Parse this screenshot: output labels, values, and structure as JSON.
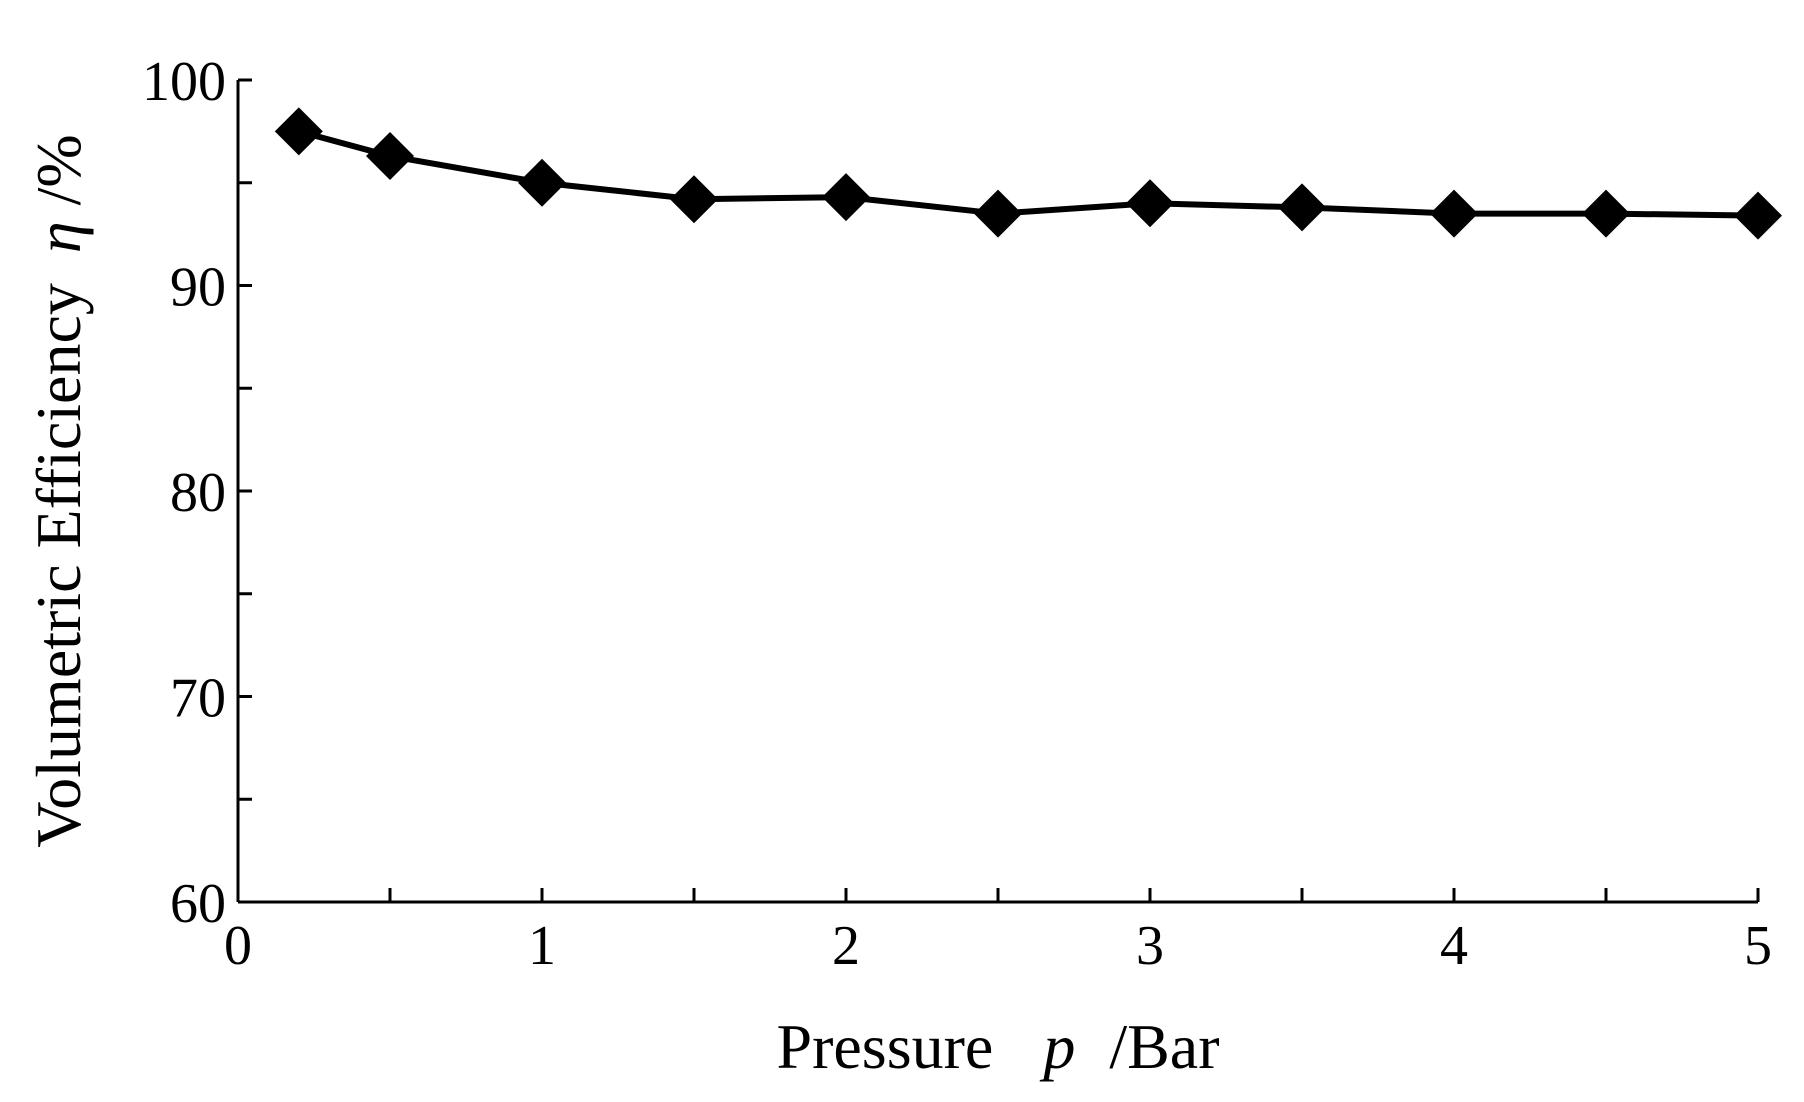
{
  "chart_data": {
    "type": "line",
    "title": "",
    "xlabel": {
      "prefix": "Pressure",
      "symbol": "p",
      "unit": "/Bar"
    },
    "ylabel": {
      "prefix": "Volumetric Efficiency",
      "symbol": "η",
      "unit": "/%"
    },
    "xlim": [
      0,
      5
    ],
    "ylim": [
      60,
      100
    ],
    "x_ticks": [
      0,
      0.5,
      1,
      1.5,
      2,
      2.5,
      3,
      3.5,
      4,
      4.5,
      5
    ],
    "x_tick_labels": [
      "0",
      "",
      "1",
      "",
      "2",
      "",
      "3",
      "",
      "4",
      "",
      "5"
    ],
    "y_ticks": [
      60,
      65,
      70,
      75,
      80,
      85,
      90,
      95,
      100
    ],
    "y_tick_labels": [
      "60",
      "",
      "70",
      "",
      "80",
      "",
      "90",
      "",
      "100"
    ],
    "grid": false,
    "legend": "none",
    "series": [
      {
        "color": "#000000",
        "marker": "diamond",
        "x": [
          0.2,
          0.5,
          1.0,
          1.5,
          2.0,
          2.5,
          3.0,
          3.5,
          4.0,
          4.5,
          5.0
        ],
        "y": [
          97.5,
          96.3,
          95.0,
          94.2,
          94.3,
          93.5,
          94.0,
          93.8,
          93.5,
          93.5,
          93.4
        ]
      }
    ]
  }
}
